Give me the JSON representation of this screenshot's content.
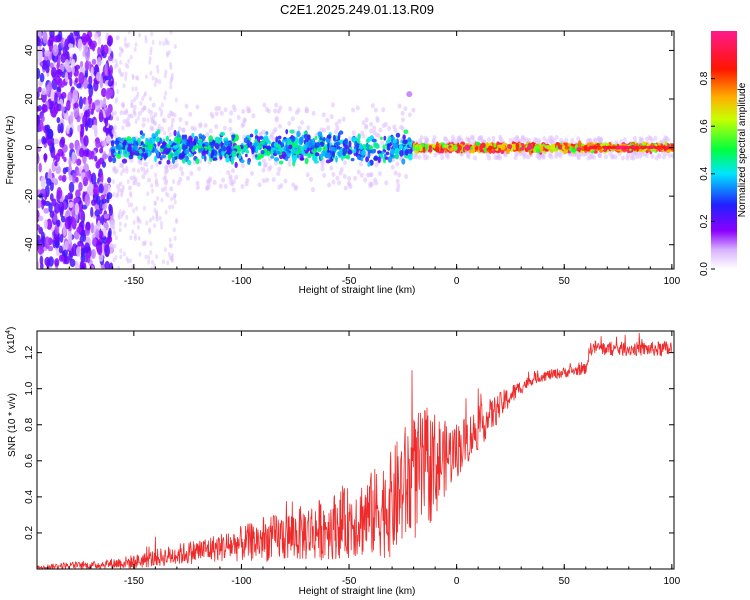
{
  "title": "C2E1.2025.249.01.13.R09",
  "colors": {
    "snr_line": "#ee2a2a"
  },
  "chart_data": [
    {
      "type": "heatmap",
      "xlabel": "Height of straight line (km)",
      "ylabel": "Frequency (Hz)",
      "xlim": [
        -195,
        101
      ],
      "ylim": [
        -50,
        48
      ],
      "xticks": [
        -150,
        -100,
        -50,
        0,
        50,
        100
      ],
      "xtick_labels": [
        "-150",
        "-100",
        "-50",
        "0",
        "50",
        "100"
      ],
      "yticks": [
        -40,
        -20,
        0,
        20,
        40
      ],
      "ytick_labels": [
        "-40",
        "-20",
        "0",
        "20",
        "40"
      ],
      "colorbar": {
        "label": "Normalized spectral amplitude",
        "range": [
          0,
          1
        ],
        "ticks": [
          0.0,
          0.2,
          0.4,
          0.6,
          0.8
        ],
        "tick_labels": [
          "0.0",
          "0.2",
          "0.4",
          "0.6",
          "0.8"
        ],
        "colormap": "rainbow (white - violet - blue - cyan - green - yellow - red - magenta)"
      },
      "features": [
        {
          "x_range": [
            -195,
            -160
          ],
          "freq_range": [
            -50,
            48
          ],
          "amplitude": [
            0.05,
            0.25
          ],
          "note": "broad noise"
        },
        {
          "x_range": [
            -160,
            -20
          ],
          "freq_center": 0,
          "freq_halfwidth": 8,
          "amplitude": [
            0.2,
            0.5
          ]
        },
        {
          "x_range": [
            -20,
            101
          ],
          "freq_center": 0,
          "freq_halfwidth": 2,
          "amplitude": [
            0.5,
            1.0
          ]
        },
        {
          "x": 5,
          "freq": 0,
          "amplitude": 1.0
        },
        {
          "x": -22,
          "freq": 22,
          "amplitude": 0.1
        }
      ]
    },
    {
      "type": "line",
      "xlabel": "Height of straight line (km)",
      "ylabel": "SNR (10 * v/v)",
      "yscale_label": "(x10",
      "yscale_exponent": "4",
      "xlim": [
        -195,
        101
      ],
      "ylim": [
        0,
        1.32
      ],
      "xticks": [
        -150,
        -100,
        -50,
        0,
        50,
        100
      ],
      "xtick_labels": [
        "-150",
        "-100",
        "-50",
        "0",
        "50",
        "100"
      ],
      "yticks": [
        0.2,
        0.4,
        0.6,
        0.8,
        1.0,
        1.2
      ],
      "ytick_labels": [
        "0.2",
        "0.4",
        "0.6",
        "0.8",
        "1.0",
        "1.2"
      ],
      "series": [
        {
          "x": [
            -195,
            -180,
            -170,
            -160,
            -150,
            -140,
            -130,
            -120,
            -110,
            -100,
            -90,
            -80,
            -70,
            -60,
            -50,
            -40,
            -30,
            -25,
            -20,
            -15,
            -10,
            -5,
            0,
            5,
            10,
            15,
            20,
            25,
            30,
            35,
            40,
            45,
            50,
            55,
            60,
            62,
            65,
            70,
            80,
            90,
            100
          ],
          "y": [
            0.01,
            0.02,
            0.02,
            0.03,
            0.04,
            0.06,
            0.08,
            0.1,
            0.12,
            0.14,
            0.16,
            0.18,
            0.2,
            0.23,
            0.26,
            0.3,
            0.36,
            0.45,
            0.5,
            0.55,
            0.58,
            0.62,
            0.66,
            0.72,
            0.78,
            0.84,
            0.9,
            0.96,
            1.01,
            1.05,
            1.07,
            1.08,
            1.09,
            1.1,
            1.11,
            1.22,
            1.23,
            1.22,
            1.22,
            1.22,
            1.22
          ],
          "spread": [
            0.01,
            0.02,
            0.02,
            0.03,
            0.04,
            0.05,
            0.06,
            0.07,
            0.08,
            0.1,
            0.12,
            0.14,
            0.16,
            0.18,
            0.2,
            0.24,
            0.3,
            0.34,
            0.36,
            0.34,
            0.3,
            0.2,
            0.16,
            0.14,
            0.12,
            0.1,
            0.08,
            0.06,
            0.04,
            0.03,
            0.03,
            0.03,
            0.03,
            0.03,
            0.03,
            0.04,
            0.04,
            0.04,
            0.04,
            0.04,
            0.05
          ]
        }
      ]
    }
  ]
}
